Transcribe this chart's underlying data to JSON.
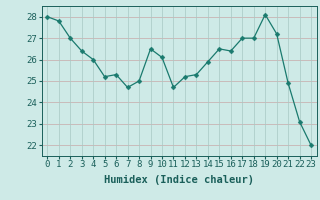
{
  "x": [
    0,
    1,
    2,
    3,
    4,
    5,
    6,
    7,
    8,
    9,
    10,
    11,
    12,
    13,
    14,
    15,
    16,
    17,
    18,
    19,
    20,
    21,
    22,
    23
  ],
  "y": [
    28.0,
    27.8,
    27.0,
    26.4,
    26.0,
    25.2,
    25.3,
    24.7,
    25.0,
    26.5,
    26.1,
    24.7,
    25.2,
    25.3,
    25.9,
    26.5,
    26.4,
    27.0,
    27.0,
    28.1,
    27.2,
    24.9,
    23.1,
    22.0
  ],
  "line_color": "#1a7a6e",
  "marker_color": "#1a7a6e",
  "bg_color": "#ceeae7",
  "hgrid_color": "#c8a8a8",
  "vgrid_color": "#a8c8c4",
  "xlabel": "Humidex (Indice chaleur)",
  "ylabel_ticks": [
    22,
    23,
    24,
    25,
    26,
    27,
    28
  ],
  "xlim": [
    -0.5,
    23.5
  ],
  "ylim": [
    21.5,
    28.5
  ],
  "xticks": [
    0,
    1,
    2,
    3,
    4,
    5,
    6,
    7,
    8,
    9,
    10,
    11,
    12,
    13,
    14,
    15,
    16,
    17,
    18,
    19,
    20,
    21,
    22,
    23
  ],
  "font_color": "#1a5f5a",
  "tick_font_size": 6.5,
  "label_font_size": 7.5
}
